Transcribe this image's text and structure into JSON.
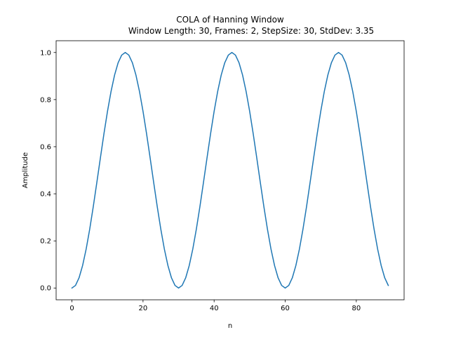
{
  "chart_data": {
    "type": "line",
    "title": "COLA of Hanning Window",
    "subtitle": "Window Length: 30, Frames: 2, StepSize: 30, StdDev: 3.35",
    "xlabel": "n",
    "ylabel": "Amplitude",
    "xlim": [
      -4.45,
      93.45
    ],
    "ylim": [
      -0.05,
      1.05
    ],
    "xticks": [
      0,
      20,
      40,
      60,
      80
    ],
    "yticks": [
      0.0,
      0.2,
      0.4,
      0.6,
      0.8,
      1.0
    ],
    "ytick_labels": [
      "0.0",
      "0.2",
      "0.4",
      "0.6",
      "0.8",
      "1.0"
    ],
    "grid": false,
    "series": [
      {
        "color": "#1f77b4",
        "x_start": 0,
        "x_step": 1,
        "values": [
          0.0,
          0.0109,
          0.0432,
          0.0955,
          0.1654,
          0.25,
          0.3455,
          0.4477,
          0.5523,
          0.6545,
          0.75,
          0.8346,
          0.9045,
          0.9568,
          0.9891,
          1.0,
          0.9891,
          0.9568,
          0.9045,
          0.8346,
          0.75,
          0.6545,
          0.5523,
          0.4477,
          0.3455,
          0.25,
          0.1654,
          0.0955,
          0.0432,
          0.0109,
          0.0,
          0.0109,
          0.0432,
          0.0955,
          0.1654,
          0.25,
          0.3455,
          0.4477,
          0.5523,
          0.6545,
          0.75,
          0.8346,
          0.9045,
          0.9568,
          0.9891,
          1.0,
          0.9891,
          0.9568,
          0.9045,
          0.8346,
          0.75,
          0.6545,
          0.5523,
          0.4477,
          0.3455,
          0.25,
          0.1654,
          0.0955,
          0.0432,
          0.0109,
          0.0,
          0.0109,
          0.0432,
          0.0955,
          0.1654,
          0.25,
          0.3455,
          0.4477,
          0.5523,
          0.6545,
          0.75,
          0.8346,
          0.9045,
          0.9568,
          0.9891,
          1.0,
          0.9891,
          0.9568,
          0.9045,
          0.8346,
          0.75,
          0.6545,
          0.5523,
          0.4477,
          0.3455,
          0.25,
          0.1654,
          0.0955,
          0.0432,
          0.0109
        ]
      }
    ]
  }
}
